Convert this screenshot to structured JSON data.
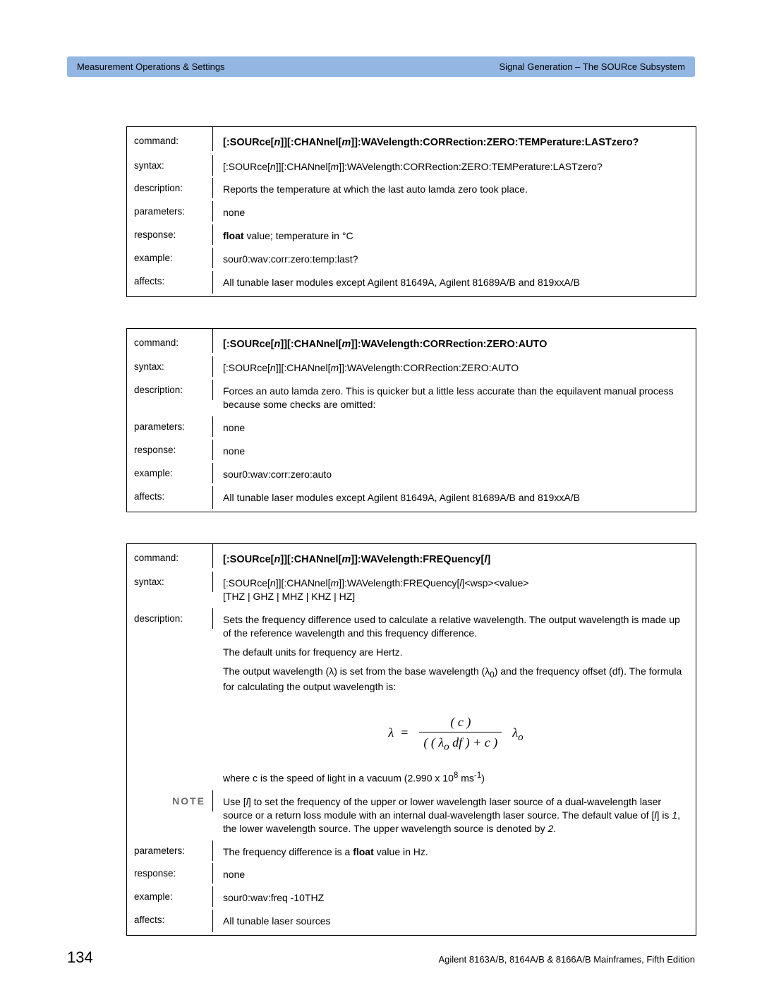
{
  "header": {
    "left": "Measurement Operations & Settings",
    "right": "Signal Generation – The SOURce Subsystem"
  },
  "tables": [
    {
      "rows": [
        {
          "label": "command:",
          "type": "title",
          "value": "[:SOURce[n]][:CHANnel[m]]:WAVelength:CORRection:ZERO:TEMPerature:LASTzero?"
        },
        {
          "label": "syntax:",
          "value": "[:SOURce[n]][:CHANnel[m]]:WAVelength:CORRection:ZERO:TEMPerature:LASTzero?"
        },
        {
          "label": "description:",
          "value": "Reports the temperature at which the last auto lamda zero took place."
        },
        {
          "label": "parameters:",
          "value": "none"
        },
        {
          "label": "response:",
          "type": "response_float",
          "pre": "float",
          "post": " value; temperature in °C"
        },
        {
          "label": "example:",
          "value": "sour0:wav:corr:zero:temp:last?"
        },
        {
          "label": "affects:",
          "value": "All tunable laser modules except Agilent 81649A, Agilent 81689A/B and 819xxA/B"
        }
      ]
    },
    {
      "rows": [
        {
          "label": "command:",
          "type": "title",
          "value": "[:SOURce[n]][:CHANnel[m]]:WAVelength:CORRection:ZERO:AUTO"
        },
        {
          "label": "syntax:",
          "value": "[:SOURce[n]][:CHANnel[m]]:WAVelength:CORRection:ZERO:AUTO"
        },
        {
          "label": "description:",
          "value": "Forces an auto lamda zero. This is quicker but a little less accurate than the equilavent manual process because some checks are omitted:"
        },
        {
          "label": "parameters:",
          "value": "none"
        },
        {
          "label": "response:",
          "value": "none"
        },
        {
          "label": "example:",
          "value": "sour0:wav:corr:zero:auto"
        },
        {
          "label": "affects:",
          "value": "All tunable laser modules except Agilent 81649A, Agilent 81689A/B and 819xxA/B"
        }
      ]
    }
  ],
  "table3": {
    "command_label": "command:",
    "command_value": "[:SOURce[n]][:CHANnel[m]]:WAVelength:FREQuency[l]",
    "syntax_label": "syntax:",
    "syntax_l1": "[:SOURce[n]][:CHANnel[m]]:WAVelength:FREQuency[l]<wsp><value>",
    "syntax_l2": "[THZ | GHZ | MHZ | KHZ | HZ]",
    "description_label": "description:",
    "desc_p1": "Sets the frequency difference used to calculate a relative wavelength. The output wavelength is made up of the reference wavelength and this frequency difference.",
    "desc_p2": "The default units for frequency are Hertz.",
    "desc_p3a": "The output wavelength (λ) is set from the base wavelength (λ",
    "desc_p3b": ") and the frequency offset (df). The formula for calculating the output wavelength is:",
    "desc_where": "where c is the speed of light in a vacuum (2.990 x 10",
    "desc_where_unit": " ms",
    "desc_where_close": ")",
    "note_label": "NOTE",
    "note_text": "Use [l] to set the frequency of the upper or lower wavelength laser source of a dual-wavelength laser source or a return loss module with an internal dual-wavelength laser source. The default value of [l] is 1, the lower wavelength source. The upper wavelength source is denoted by 2.",
    "parameters_label": "parameters:",
    "parameters_pre": "The frequency difference is a ",
    "parameters_bold": "float",
    "parameters_post": " value in Hz.",
    "response_label": "response:",
    "response_value": "none",
    "example_label": "example:",
    "example_value": "sour0:wav:freq -10THZ",
    "affects_label": "affects:",
    "affects_value": "All tunable laser sources"
  },
  "footer": {
    "page": "134",
    "text": "Agilent 8163A/B, 8164A/B & 8166A/B Mainframes, Fifth Edition"
  }
}
